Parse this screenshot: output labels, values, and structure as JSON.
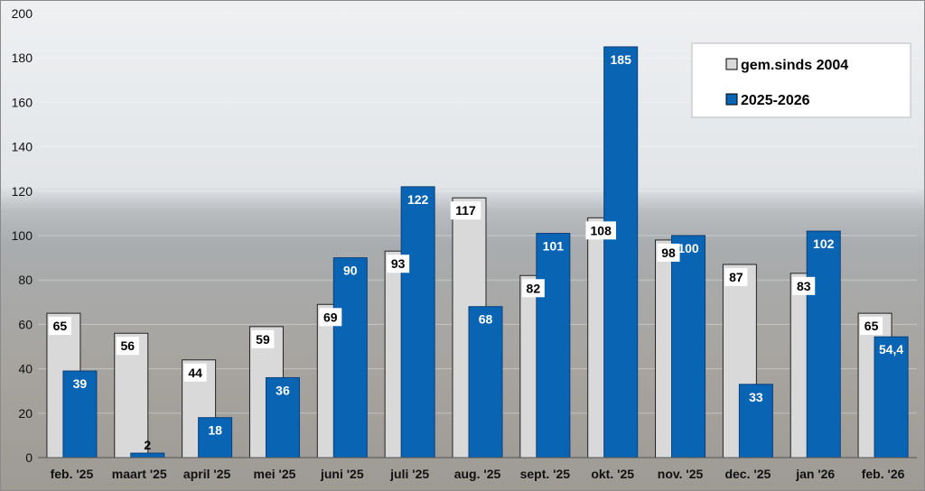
{
  "chart_data": {
    "type": "bar",
    "categories": [
      "feb. '25",
      "maart '25",
      "april '25",
      "mei '25",
      "juni '25",
      "juli '25",
      "aug. '25",
      "sept. '25",
      "okt. '25",
      "nov. '25",
      "dec. '25",
      "jan '26",
      "feb. '26"
    ],
    "series": [
      {
        "name": "gem.sinds 2004",
        "color": "#d9d9d9",
        "values": [
          65,
          56,
          44,
          59,
          69,
          93,
          117,
          82,
          108,
          98,
          87,
          83,
          65
        ],
        "labels": [
          "65",
          "56",
          "44",
          "59",
          "69",
          "93",
          "117",
          "82",
          "108",
          "98",
          "87",
          "83",
          "65"
        ]
      },
      {
        "name": "2025-2026",
        "color": "#0a64b4",
        "values": [
          39,
          2,
          18,
          36,
          90,
          122,
          68,
          101,
          185,
          100,
          33,
          102,
          54.4
        ],
        "labels": [
          "39",
          "2",
          "18",
          "36",
          "90",
          "122",
          "68",
          "101",
          "185",
          "100",
          "33",
          "102",
          "54,4"
        ]
      }
    ],
    "ylim": [
      0,
      200
    ],
    "yticks": [
      0,
      20,
      40,
      60,
      80,
      100,
      120,
      140,
      160,
      180,
      200
    ],
    "grid": true,
    "legend_position": "top-right",
    "title": "",
    "xlabel": "",
    "ylabel": ""
  }
}
